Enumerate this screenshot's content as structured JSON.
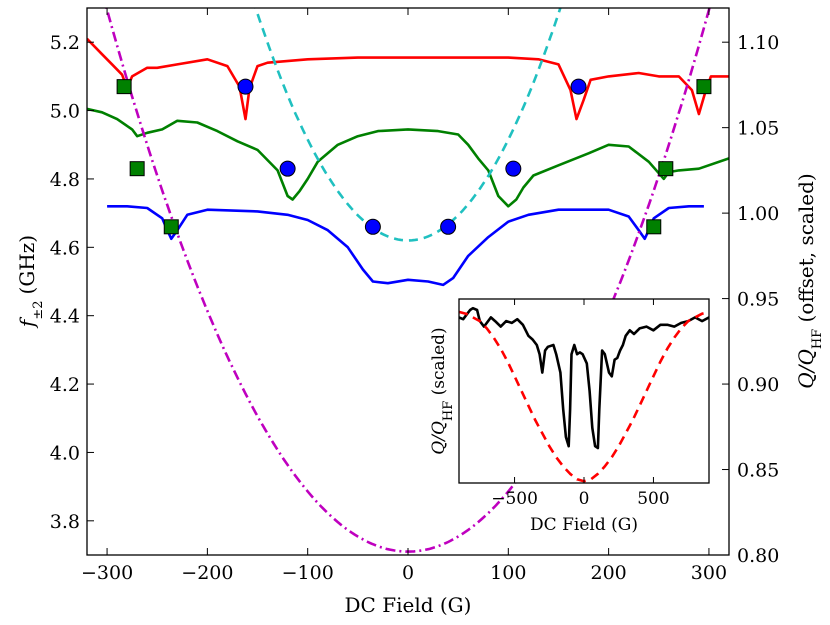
{
  "chart_data": [
    {
      "type": "line",
      "role": "main",
      "xlabel": "DC Field (G)",
      "ylabel_left": {
        "symbol": "f",
        "subscript": "±2",
        "unit": "(GHz)"
      },
      "ylabel_right": {
        "main": "Q/Q",
        "subscript": "HF",
        "rest": " (offset, scaled)"
      },
      "xlim": [
        -320,
        320
      ],
      "ylim_left": [
        3.7,
        5.3
      ],
      "ylim_right": [
        0.8,
        1.12
      ],
      "xticks": [
        -300,
        -200,
        -100,
        0,
        100,
        200,
        300
      ],
      "xtick_labels": [
        "−300",
        "−200",
        "−100",
        "0",
        "100",
        "200",
        "300"
      ],
      "yticks_left": [
        3.8,
        4.0,
        4.2,
        4.4,
        4.6,
        4.8,
        5.0,
        5.2
      ],
      "ytick_labels_left": [
        "3.8",
        "4.0",
        "4.2",
        "4.4",
        "4.6",
        "4.8",
        "5.0",
        "5.2"
      ],
      "yticks_right": [
        0.8,
        0.85,
        0.9,
        0.95,
        1.0,
        1.05,
        1.1
      ],
      "ytick_labels_right": [
        "0.80",
        "0.85",
        "0.90",
        "0.95",
        "1.00",
        "1.05",
        "1.10"
      ],
      "series": [
        {
          "name": "red Q/QHF trace",
          "axis": "right",
          "color": "#ff0000",
          "style": "solid",
          "x": [
            -320,
            -305,
            -295,
            -285,
            -280,
            -275,
            -260,
            -250,
            -230,
            -200,
            -180,
            -168,
            -162,
            -158,
            -150,
            -140,
            -100,
            -50,
            0,
            50,
            100,
            130,
            150,
            162,
            168,
            175,
            182,
            200,
            230,
            250,
            270,
            283,
            290,
            296,
            302,
            320
          ],
          "y": [
            1.102,
            1.093,
            1.087,
            1.081,
            1.073,
            1.08,
            1.085,
            1.085,
            1.087,
            1.09,
            1.086,
            1.074,
            1.055,
            1.073,
            1.086,
            1.088,
            1.09,
            1.091,
            1.091,
            1.091,
            1.091,
            1.09,
            1.087,
            1.072,
            1.055,
            1.066,
            1.078,
            1.08,
            1.082,
            1.08,
            1.08,
            1.072,
            1.058,
            1.07,
            1.08,
            1.08
          ]
        },
        {
          "name": "green Q/QHF trace",
          "axis": "right",
          "color": "#008000",
          "style": "solid",
          "x": [
            -320,
            -305,
            -290,
            -275,
            -270,
            -260,
            -245,
            -230,
            -210,
            -190,
            -170,
            -150,
            -130,
            -120,
            -115,
            -108,
            -100,
            -90,
            -70,
            -50,
            -30,
            0,
            30,
            50,
            60,
            70,
            80,
            90,
            100,
            108,
            115,
            125,
            150,
            180,
            200,
            220,
            240,
            255,
            260,
            270,
            290,
            320
          ],
          "y": [
            1.061,
            1.059,
            1.055,
            1.049,
            1.045,
            1.047,
            1.049,
            1.054,
            1.053,
            1.048,
            1.042,
            1.037,
            1.025,
            1.01,
            1.008,
            1.013,
            1.02,
            1.03,
            1.04,
            1.045,
            1.048,
            1.049,
            1.048,
            1.046,
            1.04,
            1.032,
            1.025,
            1.01,
            1.004,
            1.008,
            1.015,
            1.022,
            1.028,
            1.035,
            1.04,
            1.039,
            1.03,
            1.02,
            1.024,
            1.025,
            1.026,
            1.032
          ]
        },
        {
          "name": "blue Q/QHF trace",
          "axis": "right",
          "color": "#0000ff",
          "style": "solid",
          "x": [
            -300,
            -280,
            -260,
            -245,
            -240,
            -236,
            -230,
            -220,
            -200,
            -150,
            -120,
            -100,
            -80,
            -60,
            -45,
            -35,
            -20,
            0,
            20,
            35,
            45,
            60,
            80,
            100,
            120,
            150,
            200,
            220,
            230,
            236,
            240,
            245,
            260,
            280,
            295
          ],
          "y": [
            1.004,
            1.004,
            1.003,
            0.997,
            0.99,
            0.985,
            0.99,
            0.999,
            1.002,
            1.001,
            0.999,
            0.996,
            0.99,
            0.98,
            0.967,
            0.96,
            0.959,
            0.961,
            0.96,
            0.958,
            0.962,
            0.975,
            0.986,
            0.995,
            0.999,
            1.002,
            1.002,
            0.998,
            0.99,
            0.985,
            0.99,
            0.997,
            1.003,
            1.004,
            1.004
          ]
        },
        {
          "name": "cyan dashed fit",
          "axis": "left",
          "color": "#20c0c0",
          "style": "dashed",
          "formula": {
            "a": 4.62,
            "b": 2.95e-05
          },
          "x_range": [
            -320,
            320
          ]
        },
        {
          "name": "magenta dash-dot fit",
          "axis": "left",
          "color": "#bf00bf",
          "style": "dashdot",
          "formula": {
            "a": 3.71,
            "b": 1.76e-05
          },
          "x_range": [
            -320,
            320
          ]
        },
        {
          "name": "blue circles",
          "axis": "left",
          "marker": "circle",
          "fill": "#0000ff",
          "edge": "#000000",
          "x": [
            -35,
            40,
            -120,
            105,
            -162,
            170
          ],
          "y": [
            4.66,
            4.66,
            4.83,
            4.83,
            5.07,
            5.07
          ]
        },
        {
          "name": "green squares",
          "axis": "left",
          "marker": "square",
          "fill": "#008000",
          "edge": "#000000",
          "x": [
            -236,
            245,
            -270,
            257,
            -283,
            295
          ],
          "y": [
            4.66,
            4.66,
            4.83,
            4.83,
            5.07,
            5.07
          ]
        }
      ]
    },
    {
      "type": "line",
      "role": "inset",
      "xlabel": "DC Field (G)",
      "ylabel": {
        "main": "Q/Q",
        "subscript": "HF",
        "rest": " (scaled)"
      },
      "xlim": [
        -900,
        900
      ],
      "ylim": [
        0,
        1
      ],
      "xticks": [
        -500,
        0,
        500
      ],
      "xtick_labels": [
        "−500",
        "0",
        "500"
      ],
      "series": [
        {
          "name": "black measured trace",
          "color": "#000000",
          "style": "solid",
          "x": [
            -900,
            -870,
            -840,
            -820,
            -800,
            -770,
            -750,
            -720,
            -700,
            -670,
            -640,
            -600,
            -560,
            -520,
            -480,
            -440,
            -400,
            -370,
            -340,
            -320,
            -300,
            -280,
            -260,
            -220,
            -200,
            -170,
            -150,
            -130,
            -110,
            -100,
            -90,
            -70,
            -50,
            -30,
            -10,
            20,
            40,
            60,
            80,
            100,
            110,
            130,
            150,
            180,
            200,
            220,
            240,
            250,
            260,
            280,
            300,
            330,
            360,
            400,
            450,
            500,
            550,
            600,
            650,
            700,
            750,
            800,
            850,
            900
          ],
          "y": [
            0.9,
            0.89,
            0.92,
            0.94,
            0.95,
            0.94,
            0.88,
            0.85,
            0.87,
            0.9,
            0.88,
            0.85,
            0.88,
            0.87,
            0.89,
            0.86,
            0.8,
            0.78,
            0.75,
            0.7,
            0.6,
            0.72,
            0.74,
            0.75,
            0.7,
            0.6,
            0.4,
            0.25,
            0.2,
            0.4,
            0.7,
            0.75,
            0.7,
            0.71,
            0.7,
            0.65,
            0.5,
            0.3,
            0.2,
            0.19,
            0.4,
            0.72,
            0.7,
            0.6,
            0.58,
            0.67,
            0.68,
            0.7,
            0.72,
            0.75,
            0.8,
            0.83,
            0.81,
            0.84,
            0.85,
            0.83,
            0.86,
            0.86,
            0.85,
            0.87,
            0.88,
            0.9,
            0.88,
            0.9
          ]
        },
        {
          "name": "red dashed model",
          "color": "#ff0000",
          "style": "dashed",
          "x": [
            -900,
            -850,
            -800,
            -750,
            -700,
            -650,
            -600,
            -550,
            -500,
            -450,
            -400,
            -350,
            -300,
            -250,
            -200,
            -150,
            -100,
            -50,
            0,
            50,
            100,
            150,
            200,
            250,
            300,
            350,
            400,
            450,
            500,
            550,
            600,
            650,
            700,
            750,
            800,
            850,
            900
          ],
          "y": [
            0.93,
            0.92,
            0.9,
            0.88,
            0.84,
            0.79,
            0.73,
            0.66,
            0.58,
            0.5,
            0.42,
            0.34,
            0.27,
            0.2,
            0.14,
            0.09,
            0.05,
            0.02,
            0.01,
            0.02,
            0.05,
            0.09,
            0.14,
            0.2,
            0.27,
            0.34,
            0.42,
            0.5,
            0.58,
            0.66,
            0.73,
            0.79,
            0.84,
            0.88,
            0.9,
            0.92,
            0.93
          ]
        }
      ]
    }
  ]
}
